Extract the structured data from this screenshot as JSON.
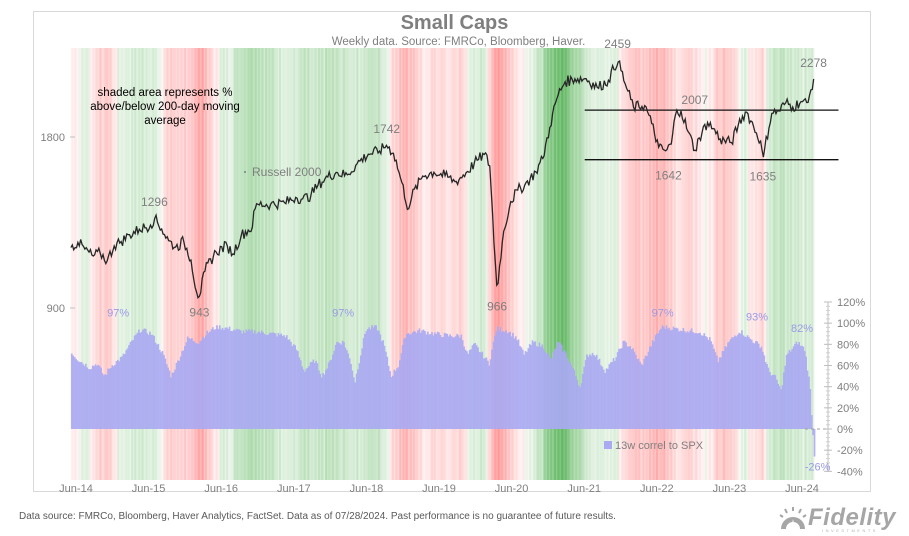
{
  "chart_data": {
    "type": "line",
    "title": "Small Caps",
    "subtitle": "Weekly data.  Source: FMRCo, Bloomberg, Haver.",
    "note": "shaded area represents % above/below 200-day moving average",
    "x_tick_labels": [
      "Jun-14",
      "Jun-15",
      "Jun-16",
      "Jun-17",
      "Jun-18",
      "Jun-19",
      "Jun-20",
      "Jun-21",
      "Jun-22",
      "Jun-23",
      "Jun-24"
    ],
    "x_range": [
      2014.35,
      2024.58
    ],
    "left_axis": {
      "scale": "log",
      "ticks": [
        900,
        1800
      ],
      "tick_labels": [
        "900",
        "1800"
      ],
      "range": [
        830,
        2800
      ]
    },
    "right_axis": {
      "ticks": [
        -40,
        -20,
        0,
        20,
        40,
        60,
        80,
        100,
        120
      ],
      "tick_labels": [
        "-40%",
        "-20%",
        "0%",
        "20%",
        "40%",
        "60%",
        "80%",
        "100%",
        "120%"
      ],
      "range": [
        -40,
        120
      ]
    },
    "series": [
      {
        "name": "Russell 2000",
        "axis": "left",
        "color": "#262626",
        "points": [
          [
            2014.35,
            1150
          ],
          [
            2014.45,
            1175
          ],
          [
            2014.55,
            1140
          ],
          [
            2014.65,
            1110
          ],
          [
            2014.75,
            1125
          ],
          [
            2014.85,
            1090
          ],
          [
            2014.95,
            1160
          ],
          [
            2015.05,
            1180
          ],
          [
            2015.15,
            1210
          ],
          [
            2015.3,
            1240
          ],
          [
            2015.45,
            1260
          ],
          [
            2015.5,
            1296
          ],
          [
            2015.6,
            1240
          ],
          [
            2015.7,
            1180
          ],
          [
            2015.8,
            1150
          ],
          [
            2015.9,
            1180
          ],
          [
            2016.0,
            1100
          ],
          [
            2016.08,
            960
          ],
          [
            2016.12,
            943
          ],
          [
            2016.2,
            1050
          ],
          [
            2016.35,
            1130
          ],
          [
            2016.5,
            1160
          ],
          [
            2016.58,
            1120
          ],
          [
            2016.7,
            1210
          ],
          [
            2016.85,
            1250
          ],
          [
            2016.88,
            1340
          ],
          [
            2016.92,
            1370
          ],
          [
            2017.1,
            1370
          ],
          [
            2017.3,
            1380
          ],
          [
            2017.45,
            1410
          ],
          [
            2017.55,
            1400
          ],
          [
            2017.65,
            1420
          ],
          [
            2017.75,
            1480
          ],
          [
            2017.85,
            1520
          ],
          [
            2018.0,
            1560
          ],
          [
            2018.15,
            1540
          ],
          [
            2018.3,
            1620
          ],
          [
            2018.45,
            1680
          ],
          [
            2018.6,
            1700
          ],
          [
            2018.7,
            1742
          ],
          [
            2018.8,
            1680
          ],
          [
            2018.88,
            1540
          ],
          [
            2019.0,
            1340
          ],
          [
            2019.05,
            1420
          ],
          [
            2019.2,
            1540
          ],
          [
            2019.35,
            1560
          ],
          [
            2019.5,
            1540
          ],
          [
            2019.65,
            1500
          ],
          [
            2019.8,
            1560
          ],
          [
            2019.95,
            1640
          ],
          [
            2020.05,
            1680
          ],
          [
            2020.12,
            1600
          ],
          [
            2020.18,
            1150
          ],
          [
            2020.22,
            966
          ],
          [
            2020.3,
            1200
          ],
          [
            2020.4,
            1380
          ],
          [
            2020.5,
            1450
          ],
          [
            2020.6,
            1480
          ],
          [
            2020.75,
            1560
          ],
          [
            2020.85,
            1650
          ],
          [
            2020.95,
            1880
          ],
          [
            2021.05,
            2120
          ],
          [
            2021.15,
            2250
          ],
          [
            2021.3,
            2280
          ],
          [
            2021.45,
            2280
          ],
          [
            2021.6,
            2200
          ],
          [
            2021.75,
            2260
          ],
          [
            2021.88,
            2459
          ],
          [
            2022.0,
            2200
          ],
          [
            2022.1,
            2030
          ],
          [
            2022.25,
            2050
          ],
          [
            2022.35,
            1900
          ],
          [
            2022.45,
            1720
          ],
          [
            2022.55,
            1700
          ],
          [
            2022.62,
            1750
          ],
          [
            2022.68,
            1980
          ],
          [
            2022.75,
            2007
          ],
          [
            2022.85,
            1840
          ],
          [
            2022.95,
            1700
          ],
          [
            2023.0,
            1790
          ],
          [
            2023.12,
            1910
          ],
          [
            2023.2,
            1860
          ],
          [
            2023.3,
            1780
          ],
          [
            2023.45,
            1760
          ],
          [
            2023.55,
            1900
          ],
          [
            2023.65,
            2000
          ],
          [
            2023.75,
            1880
          ],
          [
            2023.85,
            1770
          ],
          [
            2023.88,
            1635
          ],
          [
            2024.0,
            1980
          ],
          [
            2024.1,
            2000
          ],
          [
            2024.2,
            2070
          ],
          [
            2024.3,
            2030
          ],
          [
            2024.4,
            2080
          ],
          [
            2024.5,
            2060
          ],
          [
            2024.55,
            2200
          ],
          [
            2024.58,
            2278
          ]
        ]
      },
      {
        "name": "13w correl to SPX",
        "axis": "right",
        "type": "bar",
        "color": "#aaaaf2",
        "points": [
          [
            2014.35,
            72
          ],
          [
            2014.45,
            65
          ],
          [
            2014.6,
            58
          ],
          [
            2014.7,
            62
          ],
          [
            2014.8,
            50
          ],
          [
            2014.9,
            60
          ],
          [
            2015.05,
            68
          ],
          [
            2015.2,
            85
          ],
          [
            2015.3,
            94
          ],
          [
            2015.45,
            90
          ],
          [
            2015.6,
            72
          ],
          [
            2015.72,
            50
          ],
          [
            2015.8,
            62
          ],
          [
            2015.95,
            86
          ],
          [
            2016.1,
            82
          ],
          [
            2016.2,
            90
          ],
          [
            2016.35,
            97
          ],
          [
            2016.5,
            95
          ],
          [
            2016.7,
            92
          ],
          [
            2016.9,
            92
          ],
          [
            2017.1,
            90
          ],
          [
            2017.3,
            88
          ],
          [
            2017.45,
            75
          ],
          [
            2017.55,
            55
          ],
          [
            2017.7,
            65
          ],
          [
            2017.8,
            50
          ],
          [
            2017.9,
            62
          ],
          [
            2018.0,
            82
          ],
          [
            2018.1,
            82
          ],
          [
            2018.2,
            62
          ],
          [
            2018.25,
            44
          ],
          [
            2018.4,
            94
          ],
          [
            2018.55,
            97
          ],
          [
            2018.65,
            80
          ],
          [
            2018.75,
            50
          ],
          [
            2018.85,
            60
          ],
          [
            2018.95,
            90
          ],
          [
            2019.15,
            93
          ],
          [
            2019.35,
            90
          ],
          [
            2019.55,
            88
          ],
          [
            2019.72,
            88
          ],
          [
            2019.8,
            70
          ],
          [
            2019.9,
            80
          ],
          [
            2020.1,
            62
          ],
          [
            2020.2,
            95
          ],
          [
            2020.35,
            93
          ],
          [
            2020.48,
            86
          ],
          [
            2020.58,
            70
          ],
          [
            2020.7,
            82
          ],
          [
            2020.85,
            78
          ],
          [
            2020.95,
            65
          ],
          [
            2021.05,
            82
          ],
          [
            2021.15,
            72
          ],
          [
            2021.25,
            58
          ],
          [
            2021.35,
            40
          ],
          [
            2021.45,
            70
          ],
          [
            2021.55,
            72
          ],
          [
            2021.7,
            55
          ],
          [
            2021.85,
            68
          ],
          [
            2021.95,
            82
          ],
          [
            2022.05,
            78
          ],
          [
            2022.2,
            60
          ],
          [
            2022.35,
            82
          ],
          [
            2022.48,
            97
          ],
          [
            2022.65,
            95
          ],
          [
            2022.85,
            93
          ],
          [
            2023.0,
            92
          ],
          [
            2023.15,
            84
          ],
          [
            2023.25,
            64
          ],
          [
            2023.4,
            82
          ],
          [
            2023.55,
            93
          ],
          [
            2023.7,
            85
          ],
          [
            2023.85,
            78
          ],
          [
            2023.95,
            55
          ],
          [
            2024.05,
            48
          ],
          [
            2024.12,
            36
          ],
          [
            2024.2,
            70
          ],
          [
            2024.35,
            82
          ],
          [
            2024.45,
            75
          ],
          [
            2024.52,
            40
          ],
          [
            2024.58,
            -26
          ]
        ]
      }
    ],
    "annotations": {
      "index_labels": [
        {
          "text": "1296",
          "x": 2015.5,
          "value": 1296,
          "pos": "above"
        },
        {
          "text": "943",
          "x": 2016.12,
          "value": 943,
          "pos": "below"
        },
        {
          "text": "1742",
          "x": 2018.7,
          "value": 1742,
          "pos": "above"
        },
        {
          "text": "966",
          "x": 2020.22,
          "value": 966,
          "pos": "below"
        },
        {
          "text": "2459",
          "x": 2021.88,
          "value": 2459,
          "pos": "above"
        },
        {
          "text": "2007",
          "x": 2022.75,
          "value": 2007,
          "pos": "above"
        },
        {
          "text": "1642",
          "x": 2022.58,
          "value": 1642,
          "pos": "below"
        },
        {
          "text": "1635",
          "x": 2023.88,
          "value": 1635,
          "pos": "below"
        },
        {
          "text": "2278",
          "x": 2024.58,
          "value": 2278,
          "pos": "above"
        }
      ],
      "correl_labels": [
        {
          "text": "97%",
          "x": 2015.0,
          "value": 97
        },
        {
          "text": "97%",
          "x": 2018.1,
          "value": 97
        },
        {
          "text": "97%",
          "x": 2022.5,
          "value": 97
        },
        {
          "text": "93%",
          "x": 2023.8,
          "value": 93
        },
        {
          "text": "82%",
          "x": 2024.42,
          "value": 82
        },
        {
          "text": "-26%",
          "x": 2024.58,
          "value": -26
        }
      ],
      "series_label": "Russell 2000",
      "hlines": [
        {
          "value": 2007,
          "x_from": 2021.95,
          "x_to": 2024.95
        },
        {
          "value": 1642,
          "x_from": 2021.95,
          "x_to": 2024.95
        }
      ]
    },
    "shading": {
      "description": "% above/below 200-day moving average",
      "colors": {
        "above": "#2ca02c",
        "below": "#ff4d4d"
      },
      "bands": [
        [
          2014.35,
          -2
        ],
        [
          2014.55,
          4
        ],
        [
          2014.7,
          -6
        ],
        [
          2014.85,
          -10
        ],
        [
          2015.0,
          3
        ],
        [
          2015.2,
          5
        ],
        [
          2015.4,
          6
        ],
        [
          2015.55,
          2
        ],
        [
          2015.65,
          -6
        ],
        [
          2015.8,
          -10
        ],
        [
          2015.95,
          -6
        ],
        [
          2016.05,
          -14
        ],
        [
          2016.15,
          -18
        ],
        [
          2016.25,
          -8
        ],
        [
          2016.4,
          3
        ],
        [
          2016.55,
          5
        ],
        [
          2016.65,
          10
        ],
        [
          2016.85,
          14
        ],
        [
          2017.0,
          10
        ],
        [
          2017.2,
          6
        ],
        [
          2017.4,
          4
        ],
        [
          2017.55,
          8
        ],
        [
          2017.7,
          5
        ],
        [
          2017.85,
          9
        ],
        [
          2018.0,
          8
        ],
        [
          2018.2,
          6
        ],
        [
          2018.4,
          7
        ],
        [
          2018.55,
          9
        ],
        [
          2018.7,
          3
        ],
        [
          2018.8,
          -8
        ],
        [
          2018.95,
          -14
        ],
        [
          2019.05,
          -10
        ],
        [
          2019.2,
          -3
        ],
        [
          2019.4,
          -6
        ],
        [
          2019.55,
          -4
        ],
        [
          2019.7,
          -8
        ],
        [
          2019.85,
          3
        ],
        [
          2019.95,
          6
        ],
        [
          2020.05,
          3
        ],
        [
          2020.15,
          -14
        ],
        [
          2020.25,
          -22
        ],
        [
          2020.35,
          -10
        ],
        [
          2020.5,
          -2
        ],
        [
          2020.65,
          3
        ],
        [
          2020.8,
          8
        ],
        [
          2020.9,
          18
        ],
        [
          2021.0,
          26
        ],
        [
          2021.12,
          30
        ],
        [
          2021.25,
          18
        ],
        [
          2021.4,
          10
        ],
        [
          2021.55,
          4
        ],
        [
          2021.7,
          2
        ],
        [
          2021.85,
          4
        ],
        [
          2021.95,
          -5
        ],
        [
          2022.1,
          -10
        ],
        [
          2022.25,
          -8
        ],
        [
          2022.4,
          -16
        ],
        [
          2022.55,
          -12
        ],
        [
          2022.7,
          -3
        ],
        [
          2022.85,
          -7
        ],
        [
          2023.0,
          -3
        ],
        [
          2023.1,
          2
        ],
        [
          2023.2,
          -6
        ],
        [
          2023.35,
          -10
        ],
        [
          2023.5,
          -4
        ],
        [
          2023.62,
          3
        ],
        [
          2023.75,
          -4
        ],
        [
          2023.85,
          -8
        ],
        [
          2023.95,
          6
        ],
        [
          2024.1,
          9
        ],
        [
          2024.25,
          6
        ],
        [
          2024.4,
          4
        ],
        [
          2024.5,
          5
        ],
        [
          2024.58,
          8
        ]
      ]
    },
    "legend": {
      "label": "13w correl to SPX",
      "position": "bottom-center"
    },
    "footer": "Data source: FMRCo, Bloomberg, Haver Analytics, FactSet. Data as of 07/28/2024. Past performance is no guarantee of future results."
  },
  "branding": {
    "logo_text": "Fidelity",
    "logo_subtext": "INVESTMENTS"
  }
}
